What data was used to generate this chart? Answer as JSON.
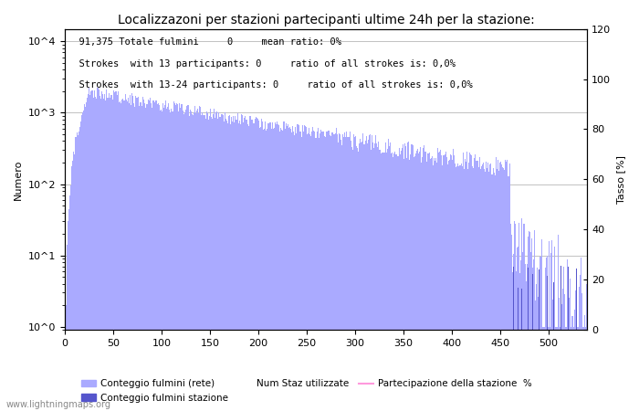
{
  "title": "Localizzazoni per stazioni partecipanti ultime 24h per la stazione:",
  "ylabel_left": "Numero",
  "ylabel_right": "Tasso [%]",
  "annotation_line1": "  91,375 Totale fulmini     0     mean ratio: 0%",
  "annotation_line2": "  Strokes  with 13 participants: 0     ratio of all strokes is: 0,0%",
  "annotation_line3": "  Strokes  with 13-24 participants: 0     ratio of all strokes is: 0,0%",
  "bar_color_light": "#aaaaff",
  "bar_color_dark": "#5555cc",
  "line_color": "#ff99dd",
  "grid_color": "#aaaaaa",
  "background_color": "#ffffff",
  "xlim": [
    0,
    540
  ],
  "ylim_right": [
    0,
    120
  ],
  "right_yticks": [
    0,
    20,
    40,
    60,
    80,
    100,
    120
  ],
  "num_stations": 540,
  "legend_entries": [
    "Conteggio fulmini (rete)",
    "Conteggio fulmini stazione",
    "Num Staz utilizzate",
    "Partecipazione della stazione  %"
  ],
  "watermark": "www.lightningmaps.org",
  "title_fontsize": 10,
  "label_fontsize": 8,
  "annotation_fontsize": 7.5
}
